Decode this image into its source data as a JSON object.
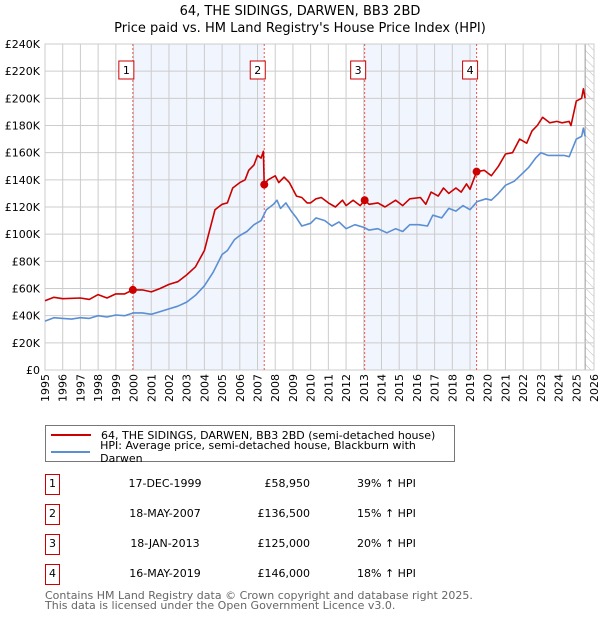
{
  "title_line1": "64, THE SIDINGS, DARWEN, BB3 2BD",
  "title_line2": "Price paid vs. HM Land Registry's House Price Index (HPI)",
  "chart_data": {
    "type": "line",
    "xlim": [
      1995,
      2026
    ],
    "ylim": [
      0,
      240000
    ],
    "x_ticks": [
      "1995",
      "1996",
      "1997",
      "1998",
      "1999",
      "2000",
      "2001",
      "2002",
      "2003",
      "2004",
      "2005",
      "2006",
      "2007",
      "2008",
      "2009",
      "2010",
      "2011",
      "2012",
      "2013",
      "2014",
      "2015",
      "2016",
      "2017",
      "2018",
      "2019",
      "2020",
      "2021",
      "2022",
      "2023",
      "2024",
      "2025",
      "2026"
    ],
    "y_ticks": [
      {
        "v": 0,
        "label": "£0"
      },
      {
        "v": 20000,
        "label": "£20K"
      },
      {
        "v": 40000,
        "label": "£40K"
      },
      {
        "v": 60000,
        "label": "£60K"
      },
      {
        "v": 80000,
        "label": "£80K"
      },
      {
        "v": 100000,
        "label": "£100K"
      },
      {
        "v": 120000,
        "label": "£120K"
      },
      {
        "v": 140000,
        "label": "£140K"
      },
      {
        "v": 160000,
        "label": "£160K"
      },
      {
        "v": 180000,
        "label": "£180K"
      },
      {
        "v": 200000,
        "label": "£200K"
      },
      {
        "v": 220000,
        "label": "£220K"
      },
      {
        "v": 240000,
        "label": "£240K"
      }
    ],
    "grid": true,
    "shaded_ranges": [
      [
        1999.96,
        2007.38
      ],
      [
        2013.05,
        2019.37
      ]
    ],
    "forecast_hatch_from": 2025.5,
    "series": [
      {
        "name": "64, THE SIDINGS, DARWEN, BB3 2BD (semi-detached house)",
        "color": "#cc0000",
        "x": [
          1995,
          1995.5,
          1996,
          1997,
          1997.5,
          1998,
          1998.5,
          1999,
          1999.5,
          1999.96,
          2000.5,
          2001,
          2001.5,
          2002,
          2002.5,
          2003,
          2003.5,
          2004,
          2004.2,
          2004.6,
          2005,
          2005.3,
          2005.6,
          2006,
          2006.3,
          2006.5,
          2006.8,
          2007,
          2007.2,
          2007.33,
          2007.38,
          2007.6,
          2008,
          2008.2,
          2008.5,
          2008.8,
          2009.2,
          2009.5,
          2009.8,
          2010,
          2010.3,
          2010.6,
          2011,
          2011.4,
          2011.8,
          2012,
          2012.4,
          2012.8,
          2013.05,
          2013.3,
          2013.8,
          2014.2,
          2014.8,
          2015.2,
          2015.6,
          2016.2,
          2016.5,
          2016.8,
          2017.2,
          2017.5,
          2017.8,
          2018.2,
          2018.5,
          2018.8,
          2019,
          2019.37,
          2019.8,
          2020.2,
          2020.6,
          2021,
          2021.4,
          2021.8,
          2022.2,
          2022.5,
          2022.8,
          2023.1,
          2023.5,
          2023.9,
          2024.2,
          2024.6,
          2024.7,
          2025,
          2025.3,
          2025.4,
          2025.5
        ],
        "y": [
          51000,
          53500,
          52500,
          53000,
          52000,
          55500,
          53000,
          56000,
          56000,
          58950,
          59000,
          57500,
          60000,
          63000,
          65000,
          70000,
          76000,
          88000,
          98000,
          118000,
          122000,
          123000,
          134000,
          138000,
          140000,
          147000,
          151000,
          158000,
          156000,
          161000,
          136500,
          140000,
          143000,
          138000,
          142000,
          138000,
          128000,
          127000,
          123000,
          123000,
          126000,
          127000,
          123000,
          120000,
          125000,
          121000,
          125000,
          121000,
          125000,
          122000,
          123000,
          120000,
          125000,
          121000,
          126000,
          127000,
          122000,
          131000,
          128000,
          134000,
          130000,
          134000,
          131000,
          137000,
          133000,
          146000,
          147000,
          143000,
          150000,
          159000,
          160000,
          170000,
          167000,
          176000,
          180000,
          186000,
          182000,
          183000,
          182000,
          183000,
          180000,
          198000,
          200000,
          207000,
          200000
        ]
      },
      {
        "name": "HPI: Average price, semi-detached house, Blackburn with Darwen",
        "color": "#5b8fd4",
        "x": [
          1995,
          1995.5,
          1996,
          1996.5,
          1997,
          1997.5,
          1998,
          1998.5,
          1999,
          1999.5,
          2000,
          2000.5,
          2001,
          2001.5,
          2002,
          2002.5,
          2003,
          2003.5,
          2004,
          2004.5,
          2005,
          2005.3,
          2005.7,
          2006,
          2006.4,
          2006.8,
          2007.2,
          2007.5,
          2007.9,
          2008.1,
          2008.3,
          2008.6,
          2008.9,
          2009.2,
          2009.5,
          2010,
          2010.3,
          2010.8,
          2011.2,
          2011.6,
          2012,
          2012.5,
          2013,
          2013.3,
          2013.8,
          2014.3,
          2014.8,
          2015.2,
          2015.6,
          2016.1,
          2016.6,
          2016.9,
          2017.4,
          2017.8,
          2018.2,
          2018.6,
          2019,
          2019.4,
          2019.9,
          2020.2,
          2020.6,
          2021,
          2021.5,
          2021.9,
          2022.3,
          2022.7,
          2023,
          2023.4,
          2023.9,
          2024.3,
          2024.6,
          2025,
          2025.3,
          2025.4,
          2025.5
        ],
        "y": [
          36000,
          38500,
          38000,
          37500,
          38500,
          38000,
          40000,
          39000,
          40500,
          40000,
          42000,
          42000,
          41000,
          43000,
          45000,
          47000,
          50000,
          55000,
          62000,
          72000,
          85000,
          88000,
          96000,
          99000,
          102000,
          107000,
          110000,
          118000,
          122000,
          125000,
          119000,
          123000,
          117000,
          112000,
          106000,
          108000,
          112000,
          110000,
          106000,
          109000,
          104000,
          107000,
          105000,
          103000,
          104000,
          101000,
          104000,
          102000,
          107000,
          107000,
          106000,
          114000,
          112000,
          119000,
          117000,
          121000,
          118000,
          124000,
          126000,
          125000,
          130000,
          136000,
          139000,
          144000,
          149000,
          156000,
          160000,
          158000,
          158000,
          158000,
          157000,
          170000,
          172000,
          178000,
          172000
        ]
      }
    ],
    "sales": [
      {
        "n": "1",
        "x": 1999.96,
        "y": 58950
      },
      {
        "n": "2",
        "x": 2007.38,
        "y": 136500
      },
      {
        "n": "3",
        "x": 2013.05,
        "y": 125000
      },
      {
        "n": "4",
        "x": 2019.37,
        "y": 146000
      }
    ]
  },
  "legend": [
    {
      "label": "64, THE SIDINGS, DARWEN, BB3 2BD (semi-detached house)",
      "color": "#cc0000"
    },
    {
      "label": "HPI: Average price, semi-detached house, Blackburn with Darwen",
      "color": "#5b8fd4"
    }
  ],
  "transactions": [
    {
      "n": "1",
      "date": "17-DEC-1999",
      "price": "£58,950",
      "hpi": "39% ↑ HPI"
    },
    {
      "n": "2",
      "date": "18-MAY-2007",
      "price": "£136,500",
      "hpi": "15% ↑ HPI"
    },
    {
      "n": "3",
      "date": "18-JAN-2013",
      "price": "£125,000",
      "hpi": "20% ↑ HPI"
    },
    {
      "n": "4",
      "date": "16-MAY-2019",
      "price": "£146,000",
      "hpi": "18% ↑ HPI"
    }
  ],
  "footer_line1": "Contains HM Land Registry data © Crown copyright and database right 2025.",
  "footer_line2": "This data is licensed under the Open Government Licence v3.0."
}
